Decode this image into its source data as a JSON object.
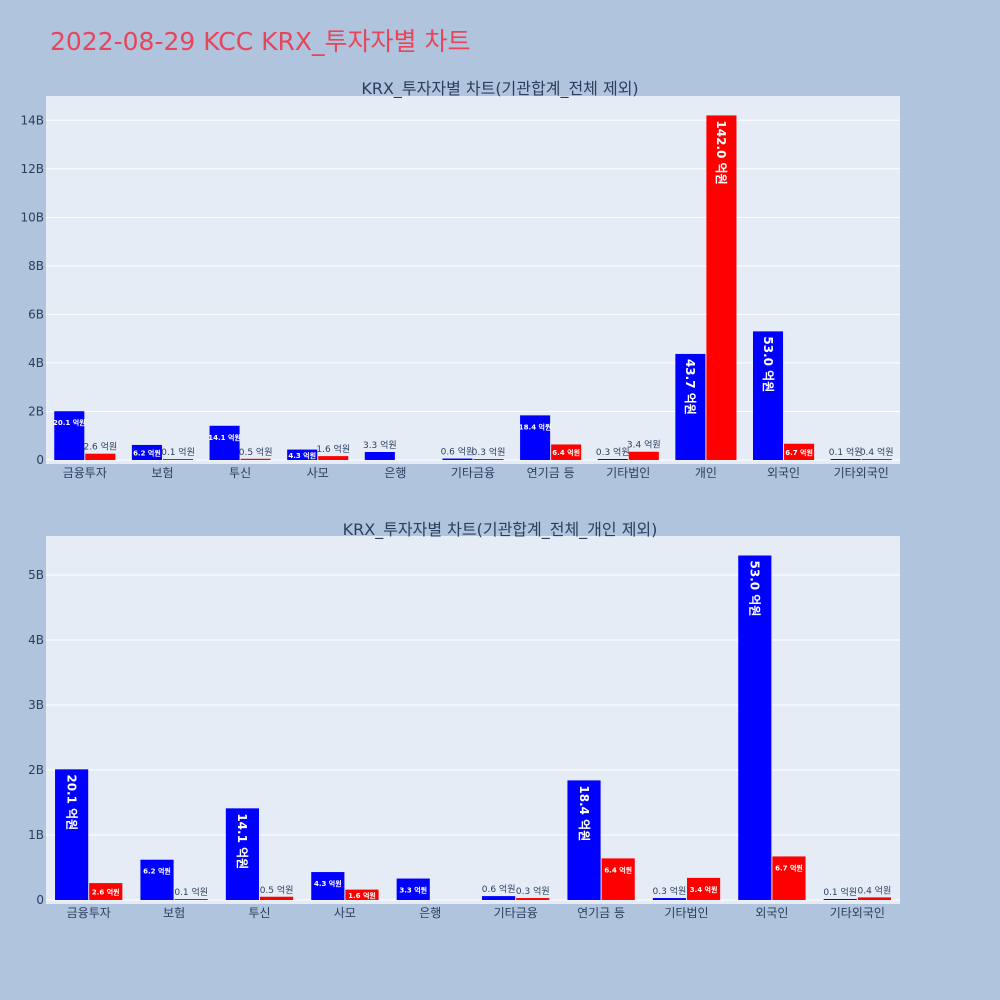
{
  "page": {
    "title": "2022-08-29 KCC KRX_투자자별 차트"
  },
  "colors": {
    "background": "#b0c4de",
    "plot_bg": "#e5ecf6",
    "title": "#e8455a",
    "series_a": "#0000ff",
    "series_b": "#ff0000",
    "text": "#2a3f5f"
  },
  "chart_data": [
    {
      "type": "bar",
      "title": "KRX_투자자별 차트(기관합계_전체 제외)",
      "categories": [
        "금융투자",
        "보험",
        "투신",
        "사모",
        "은행",
        "기타금융",
        "연기금 등",
        "기타법인",
        "개인",
        "외국인",
        "기타외국인"
      ],
      "series": [
        {
          "color": "#0000ff",
          "values": [
            2.01,
            0.62,
            1.41,
            0.43,
            0.33,
            0.06,
            1.84,
            0.03,
            4.37,
            5.3,
            0.01
          ],
          "labels": [
            "20.1 억원",
            "6.2 억원",
            "14.1 억원",
            "4.3 억원",
            "3.3 억원",
            "0.6 억원",
            "18.4 억원",
            "0.3 억원",
            "43.7 억원",
            "53.0 억원",
            "0.1 억원"
          ]
        },
        {
          "color": "#ff0000",
          "values": [
            0.26,
            0.01,
            0.05,
            0.16,
            0,
            0.03,
            0.64,
            0.34,
            14.2,
            0.67,
            0.04
          ],
          "labels": [
            "2.6 억원",
            "0.1 억원",
            "0.5 억원",
            "1.6 억원",
            "",
            "0.3 억원",
            "6.4 억원",
            "3.4 억원",
            "142.0 억원",
            "6.7 억원",
            "0.4 억원"
          ]
        }
      ],
      "yticks": [
        0,
        2,
        4,
        6,
        8,
        10,
        12,
        14
      ],
      "ytick_labels": [
        "0",
        "2B",
        "4B",
        "6B",
        "8B",
        "10B",
        "12B",
        "14B"
      ],
      "ylim": [
        0,
        15.0
      ],
      "grid": true
    },
    {
      "type": "bar",
      "title": "KRX_투자자별 차트(기관합계_전체_개인 제외)",
      "categories": [
        "금융투자",
        "보험",
        "투신",
        "사모",
        "은행",
        "기타금융",
        "연기금 등",
        "기타법인",
        "외국인",
        "기타외국인"
      ],
      "series": [
        {
          "color": "#0000ff",
          "values": [
            2.01,
            0.62,
            1.41,
            0.43,
            0.33,
            0.06,
            1.84,
            0.03,
            5.3,
            0.01
          ],
          "labels": [
            "20.1 억원",
            "6.2 억원",
            "14.1 억원",
            "4.3 억원",
            "3.3 억원",
            "0.6 억원",
            "18.4 억원",
            "0.3 억원",
            "53.0 억원",
            "0.1 억원"
          ]
        },
        {
          "color": "#ff0000",
          "values": [
            0.26,
            0.01,
            0.05,
            0.16,
            0,
            0.03,
            0.64,
            0.34,
            0.67,
            0.04
          ],
          "labels": [
            "2.6 억원",
            "0.1 억원",
            "0.5 억원",
            "1.6 억원",
            "",
            "0.3 억원",
            "6.4 억원",
            "3.4 억원",
            "6.7 억원",
            "0.4 억원"
          ]
        }
      ],
      "yticks": [
        0,
        1,
        2,
        3,
        4,
        5
      ],
      "ytick_labels": [
        "0",
        "1B",
        "2B",
        "3B",
        "4B",
        "5B"
      ],
      "ylim": [
        0,
        5.6
      ],
      "grid": true
    }
  ]
}
